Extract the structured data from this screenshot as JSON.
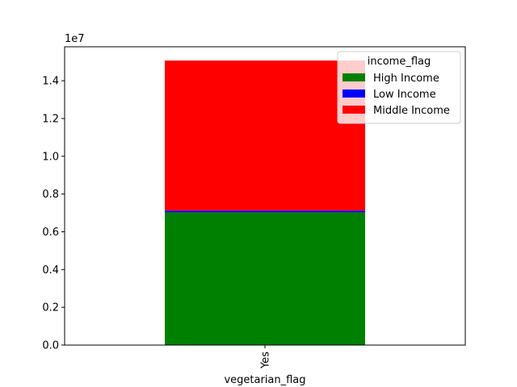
{
  "chart_data": {
    "type": "bar",
    "stacked": true,
    "categories": [
      "Yes"
    ],
    "series": [
      {
        "name": "High Income",
        "values": [
          7030000
        ]
      },
      {
        "name": "Low Income",
        "values": [
          90000
        ]
      },
      {
        "name": "Middle Income",
        "values": [
          7950000
        ]
      }
    ],
    "colors": [
      "#008000",
      "#0000ff",
      "#ff0000"
    ],
    "xlabel": "vegetarian_flag",
    "ylabel": "",
    "ylim": [
      0,
      15800000
    ],
    "yticks": [
      0,
      2000000,
      4000000,
      6000000,
      8000000,
      10000000,
      12000000,
      14000000
    ],
    "ytick_labels": [
      "0.0",
      "0.2",
      "0.4",
      "0.6",
      "0.8",
      "1.0",
      "1.2",
      "1.4"
    ],
    "offset_text": "1e7",
    "legend": {
      "title": "income_flag",
      "placement": "top-right"
    },
    "grid": false
  }
}
